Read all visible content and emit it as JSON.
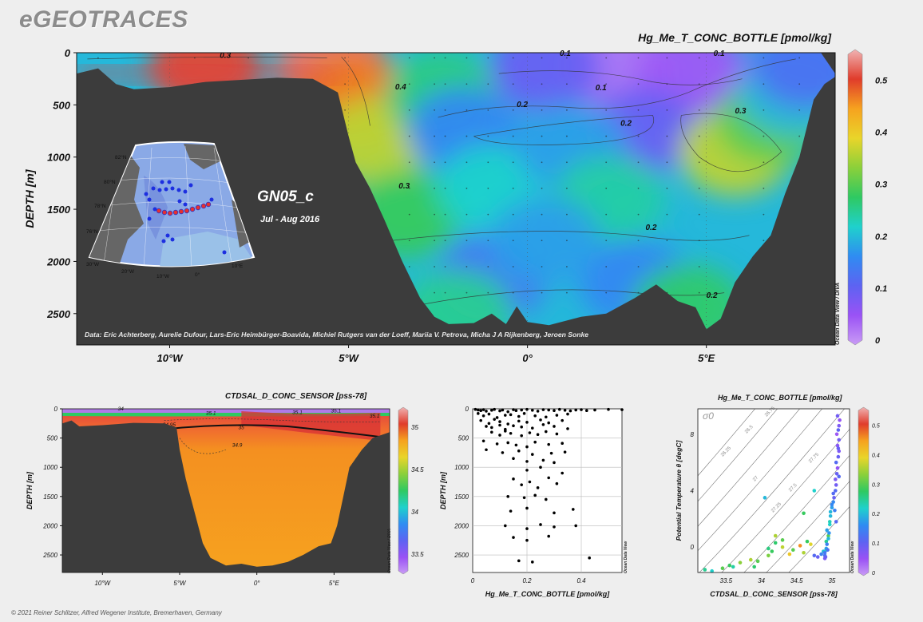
{
  "app": {
    "logo": "eGEOTRACES"
  },
  "footer": "© 2021 Reiner Schlitzer, Alfred Wegener Institute, Bremerhaven, Germany",
  "colors": {
    "background": "#eeeeee",
    "bathymetry": "#3c3c3c",
    "scatter_points": "#000000",
    "colormap": [
      "#c99cf5",
      "#9a52f5",
      "#5d63f2",
      "#2f8cf2",
      "#1fd1cc",
      "#2fc962",
      "#8bd03a",
      "#e9d52a",
      "#f6a21f",
      "#e03c2b",
      "#f0b3b3"
    ]
  },
  "main_section": {
    "title": "Hg_Me_T_CONC_BOTTLE [pmol/kg]",
    "cruise": "GN05_c",
    "period": "Jul - Aug 2016",
    "credits": "Data: Eric Achterberg, Aurelie Dufour, Lars-Eric Heimbürger-Boavida, Michiel Rutgers van der Loeff, Mariia V. Petrova, Micha J A Rijkenberg, Jeroen Sonke",
    "watermark": "Ocean Data View / DIVA",
    "contour_labels": [
      "0.3",
      "0.4",
      "0.1",
      "0.2",
      "0.1",
      "0.2",
      "0.1",
      "0.3",
      "0.3",
      "0.2",
      "0.2"
    ],
    "inset_map_labels": [
      "82°N",
      "80°N",
      "78°N",
      "76°N",
      "30°W",
      "20°W",
      "10°W",
      "0°",
      "10°E"
    ]
  },
  "salinity_section": {
    "title": "CTDSAL_D_CONC_SENSOR [pss-78]",
    "watermark": "Ocean Data View / DIVA",
    "contour_labels": [
      "34",
      "35.1",
      "35.1",
      "34.95",
      "35",
      "34.9",
      "35.1",
      "35.1"
    ]
  },
  "profile_plot": {
    "watermark": "Ocean Data View"
  },
  "ts_plot": {
    "title": "Hg_Me_T_CONC_BOTTLE [pmol/kg]",
    "sigma_label": "σ0",
    "isopycnal_labels": [
      "26.25",
      "26.5",
      "26.75",
      "27",
      "27.25",
      "27.5",
      "27.75"
    ],
    "watermark": "Ocean Data View"
  },
  "chart_data": [
    {
      "type": "heatmap",
      "title": "Hg_Me_T_CONC_BOTTLE [pmol/kg]",
      "xlabel": "",
      "ylabel": "DEPTH [m]",
      "xlim": [
        -12.6,
        8.6
      ],
      "ylim": [
        2800,
        0
      ],
      "x_ticks": [
        -10,
        -5,
        0,
        5
      ],
      "x_tick_labels": [
        "10°W",
        "5°W",
        "0°",
        "5°E"
      ],
      "y_ticks": [
        0,
        500,
        1000,
        1500,
        2000,
        2500
      ],
      "y_tick_labels": [
        "0",
        "500",
        "1000",
        "1500",
        "2000",
        "2500"
      ],
      "colorbar": {
        "min": 0,
        "max": 0.55,
        "ticks": [
          0,
          0.1,
          0.2,
          0.3,
          0.4,
          0.5
        ],
        "tick_labels": [
          "0",
          "0.1",
          "0.2",
          "0.3",
          "0.4",
          "0.5"
        ]
      },
      "blobs": [
        {
          "x": -5.5,
          "depth": 100,
          "value": 0.52
        },
        {
          "x": -9,
          "depth": 120,
          "value": 0.5
        },
        {
          "x": -4.9,
          "depth": 420,
          "value": 0.46
        },
        {
          "x": -4.3,
          "depth": 850,
          "value": 0.36
        },
        {
          "x": -3.4,
          "depth": 1550,
          "value": 0.28
        },
        {
          "x": -2.4,
          "depth": 400,
          "value": 0.26
        },
        {
          "x": -1.8,
          "depth": 750,
          "value": 0.16
        },
        {
          "x": -1,
          "depth": 1300,
          "value": 0.22
        },
        {
          "x": 2.5,
          "depth": 130,
          "value": 0.03
        },
        {
          "x": 0.5,
          "depth": 140,
          "value": 0.1
        },
        {
          "x": 4.6,
          "depth": 180,
          "value": 0.05
        },
        {
          "x": 3.2,
          "depth": 750,
          "value": 0.1
        },
        {
          "x": 1.2,
          "depth": 900,
          "value": 0.18
        },
        {
          "x": 5.8,
          "depth": 950,
          "value": 0.36
        },
        {
          "x": 6.8,
          "depth": 650,
          "value": 0.3
        },
        {
          "x": 2.3,
          "depth": 1400,
          "value": 0.24
        },
        {
          "x": -1,
          "depth": 2150,
          "value": 0.14
        },
        {
          "x": 3,
          "depth": 2200,
          "value": 0.16
        },
        {
          "x": 0.5,
          "depth": 1800,
          "value": 0.18
        },
        {
          "x": -2,
          "depth": 2500,
          "value": 0.25
        },
        {
          "x": 4.5,
          "depth": 2450,
          "value": 0.27
        },
        {
          "x": 7.4,
          "depth": 380,
          "value": 0.2
        },
        {
          "x": 7.8,
          "depth": 120,
          "value": 0.13
        }
      ],
      "bathymetry": [
        [
          -12.6,
          200
        ],
        [
          -12,
          150
        ],
        [
          -11.5,
          300
        ],
        [
          -11,
          350
        ],
        [
          -10,
          330
        ],
        [
          -9,
          280
        ],
        [
          -8,
          260
        ],
        [
          -7,
          240
        ],
        [
          -6,
          250
        ],
        [
          -5.3,
          380
        ],
        [
          -5,
          800
        ],
        [
          -4.8,
          1050
        ],
        [
          -4.4,
          1300
        ],
        [
          -4,
          1600
        ],
        [
          -3.5,
          2000
        ],
        [
          -3,
          2350
        ],
        [
          -2.6,
          2530
        ],
        [
          -2.2,
          2600
        ],
        [
          -1.5,
          2590
        ],
        [
          -1,
          2500
        ],
        [
          -0.6,
          2600
        ],
        [
          -0.3,
          2430
        ],
        [
          0,
          2580
        ],
        [
          0.6,
          2610
        ],
        [
          1.5,
          2530
        ],
        [
          2.2,
          2500
        ],
        [
          3,
          2350
        ],
        [
          3.6,
          2220
        ],
        [
          4.2,
          2380
        ],
        [
          4.7,
          2440
        ],
        [
          5,
          2650
        ],
        [
          5.4,
          2550
        ],
        [
          5.8,
          2200
        ],
        [
          6.3,
          1950
        ],
        [
          6.8,
          1750
        ],
        [
          7.2,
          1350
        ],
        [
          7.6,
          1000
        ],
        [
          8,
          450
        ],
        [
          8.3,
          300
        ],
        [
          8.6,
          230
        ]
      ]
    },
    {
      "type": "heatmap",
      "title": "CTDSAL_D_CONC_SENSOR [pss-78]",
      "xlabel": "",
      "ylabel": "DEPTH [m]",
      "xlim": [
        -12.6,
        8.6
      ],
      "ylim": [
        2800,
        0
      ],
      "x_ticks": [
        -10,
        -5,
        0,
        5
      ],
      "x_tick_labels": [
        "10°W",
        "5°W",
        "0°",
        "5°E"
      ],
      "y_ticks": [
        0,
        500,
        1000,
        1500,
        2000,
        2500
      ],
      "y_tick_labels": [
        "0",
        "500",
        "1000",
        "1500",
        "2000",
        "2500"
      ],
      "colorbar": {
        "min": 33.3,
        "max": 35.2,
        "ticks": [
          33.5,
          34,
          34.5,
          35
        ],
        "tick_labels": [
          "33.5",
          "34",
          "34.5",
          "35"
        ]
      },
      "bathymetry": [
        [
          -12.6,
          250
        ],
        [
          -12,
          200
        ],
        [
          -11.5,
          300
        ],
        [
          -10,
          280
        ],
        [
          -8,
          240
        ],
        [
          -6,
          250
        ],
        [
          -5.2,
          320
        ],
        [
          -5,
          700
        ],
        [
          -4.6,
          1200
        ],
        [
          -4,
          1800
        ],
        [
          -3.5,
          2300
        ],
        [
          -3,
          2550
        ],
        [
          -2,
          2680
        ],
        [
          -1,
          2650
        ],
        [
          0,
          2700
        ],
        [
          1,
          2680
        ],
        [
          2,
          2620
        ],
        [
          3,
          2500
        ],
        [
          4,
          2350
        ],
        [
          4.8,
          2300
        ],
        [
          5.2,
          2000
        ],
        [
          5.6,
          1500
        ],
        [
          6,
          1000
        ],
        [
          6.8,
          700
        ],
        [
          7.5,
          500
        ],
        [
          8.6,
          400
        ]
      ]
    },
    {
      "type": "scatter",
      "title": "",
      "xlabel": "Hg_Me_T_CONC_BOTTLE [pmol/kg]",
      "ylabel": "DEPTH [m]",
      "xlim": [
        0,
        0.55
      ],
      "ylim": [
        2800,
        0
      ],
      "x_ticks": [
        0,
        0.2,
        0.4
      ],
      "x_tick_labels": [
        "0",
        "0.2",
        "0.4"
      ],
      "y_ticks": [
        0,
        500,
        1000,
        1500,
        2000,
        2500
      ],
      "y_tick_labels": [
        "0",
        "500",
        "1000",
        "1500",
        "2000",
        "2500"
      ],
      "x": [
        0.01,
        0.02,
        0.03,
        0.04,
        0.05,
        0.07,
        0.08,
        0.1,
        0.11,
        0.13,
        0.15,
        0.16,
        0.18,
        0.2,
        0.22,
        0.24,
        0.26,
        0.28,
        0.3,
        0.32,
        0.34,
        0.36,
        0.38,
        0.4,
        0.42,
        0.45,
        0.5,
        0.55,
        0.02,
        0.04,
        0.06,
        0.09,
        0.12,
        0.14,
        0.17,
        0.19,
        0.23,
        0.27,
        0.31,
        0.35,
        0.03,
        0.06,
        0.08,
        0.1,
        0.13,
        0.17,
        0.2,
        0.25,
        0.28,
        0.33,
        0.05,
        0.07,
        0.1,
        0.12,
        0.15,
        0.18,
        0.22,
        0.26,
        0.3,
        0.35,
        0.07,
        0.1,
        0.12,
        0.14,
        0.18,
        0.21,
        0.24,
        0.27,
        0.31,
        0.04,
        0.09,
        0.13,
        0.16,
        0.2,
        0.23,
        0.28,
        0.33,
        0.05,
        0.11,
        0.17,
        0.22,
        0.29,
        0.34,
        0.15,
        0.2,
        0.26,
        0.3,
        0.2,
        0.25,
        0.33,
        0.15,
        0.21,
        0.28,
        0.18,
        0.24,
        0.31,
        0.13,
        0.19,
        0.23,
        0.27,
        0.14,
        0.2,
        0.3,
        0.37,
        0.12,
        0.2,
        0.25,
        0.3,
        0.38,
        0.15,
        0.2,
        0.28,
        0.43,
        0.17,
        0.22
      ],
      "y": [
        10,
        20,
        30,
        15,
        40,
        25,
        10,
        35,
        20,
        50,
        15,
        30,
        20,
        10,
        25,
        40,
        15,
        20,
        30,
        10,
        25,
        35,
        20,
        15,
        30,
        20,
        10,
        15,
        80,
        120,
        90,
        150,
        110,
        100,
        130,
        80,
        120,
        140,
        110,
        90,
        200,
        250,
        180,
        220,
        260,
        210,
        230,
        190,
        240,
        200,
        300,
        320,
        280,
        350,
        290,
        310,
        330,
        270,
        300,
        340,
        400,
        450,
        380,
        420,
        460,
        410,
        440,
        390,
        430,
        550,
        600,
        580,
        620,
        650,
        570,
        610,
        590,
        700,
        750,
        720,
        780,
        760,
        740,
        850,
        900,
        880,
        920,
        1050,
        1000,
        1100,
        1200,
        1250,
        1180,
        1300,
        1350,
        1280,
        1500,
        1520,
        1480,
        1550,
        1750,
        1700,
        1780,
        1720,
        2000,
        2050,
        1980,
        2020,
        2000,
        2200,
        2250,
        2180,
        2550,
        2600,
        2620
      ],
      "point_color": "#000000"
    },
    {
      "type": "scatter",
      "title": "Hg_Me_T_CONC_BOTTLE [pmol/kg]",
      "xlabel": "CTDSAL_D_CONC_SENSOR [pss-78]",
      "ylabel": "Potential Temperature θ [degC]",
      "xlim": [
        33.1,
        35.25
      ],
      "ylim": [
        -1.8,
        9.8
      ],
      "x_ticks": [
        33.5,
        34,
        34.5,
        35
      ],
      "x_tick_labels": [
        "33.5",
        "34",
        "34.5",
        "35"
      ],
      "y_ticks": [
        0,
        4,
        8
      ],
      "y_tick_labels": [
        "0",
        "4",
        "8"
      ],
      "colorbar": {
        "min": 0,
        "max": 0.55,
        "ticks": [
          0,
          0.1,
          0.2,
          0.3,
          0.4,
          0.5
        ],
        "tick_labels": [
          "0",
          "0.1",
          "0.2",
          "0.3",
          "0.4",
          "0.5"
        ]
      },
      "salinity": [
        33.2,
        33.3,
        33.45,
        33.55,
        33.7,
        33.85,
        33.95,
        34.1,
        34.15,
        34.2,
        34.3,
        34.4,
        34.45,
        34.55,
        34.6,
        34.65,
        34.7,
        34.75,
        34.8,
        34.85,
        34.88,
        34.9,
        34.9,
        34.92,
        34.92,
        34.93,
        34.95,
        34.97,
        34.98,
        35,
        35.02,
        35.03,
        35.05,
        35.06,
        35.05,
        35.07,
        35.08,
        35.06,
        35.09,
        35.1,
        35.08,
        35.1,
        35.07,
        35.09,
        35.1,
        35.11,
        35.08,
        35.09,
        35.1,
        34.9,
        34.92,
        34.95,
        34.97,
        34.93,
        34.96,
        34.98,
        35.0,
        35.02,
        34.91,
        34.94,
        34.1,
        34.3,
        33.9,
        34.6,
        34.75,
        34.05,
        33.6,
        34.2,
        35.04,
        35.06
      ],
      "theta": [
        -1.6,
        -1.7,
        -1.5,
        -1.3,
        -1.1,
        -0.9,
        -1.0,
        -0.6,
        -0.3,
        0.3,
        0.0,
        -0.5,
        -0.2,
        0.1,
        -0.4,
        0.4,
        0.2,
        -0.6,
        -0.7,
        -0.5,
        -0.3,
        -0.8,
        -0.6,
        -0.2,
        0.4,
        1.2,
        0.8,
        1.6,
        2.2,
        2.8,
        3.2,
        3.5,
        4.0,
        4.4,
        4.8,
        5.2,
        5.6,
        6.0,
        6.4,
        6.8,
        7.2,
        7.6,
        8.0,
        8.3,
        8.6,
        9.0,
        9.3,
        7.0,
        5.0,
        -0.4,
        -0.1,
        0.6,
        1.8,
        0.2,
        1.0,
        2.5,
        3.0,
        3.8,
        -0.7,
        -0.2,
        -0.1,
        0.5,
        -1.4,
        2.4,
        4.0,
        3.5,
        -1.4,
        0.8,
        2.6,
        1.8
      ],
      "value": [
        0.25,
        0.22,
        0.3,
        0.28,
        0.33,
        0.35,
        0.3,
        0.32,
        0.28,
        0.27,
        0.36,
        0.4,
        0.3,
        0.45,
        0.35,
        0.28,
        0.38,
        0.12,
        0.1,
        0.15,
        0.2,
        0.08,
        0.14,
        0.22,
        0.25,
        0.18,
        0.3,
        0.22,
        0.2,
        0.18,
        0.16,
        0.1,
        0.12,
        0.09,
        0.08,
        0.1,
        0.06,
        0.12,
        0.1,
        0.08,
        0.07,
        0.09,
        0.05,
        0.11,
        0.08,
        0.06,
        0.09,
        0.1,
        0.12,
        0.14,
        0.18,
        0.2,
        0.23,
        0.15,
        0.17,
        0.2,
        0.16,
        0.12,
        0.1,
        0.13,
        0.26,
        0.3,
        0.27,
        0.28,
        0.22,
        0.2,
        0.24,
        0.35,
        0.15,
        0.12
      ]
    }
  ]
}
